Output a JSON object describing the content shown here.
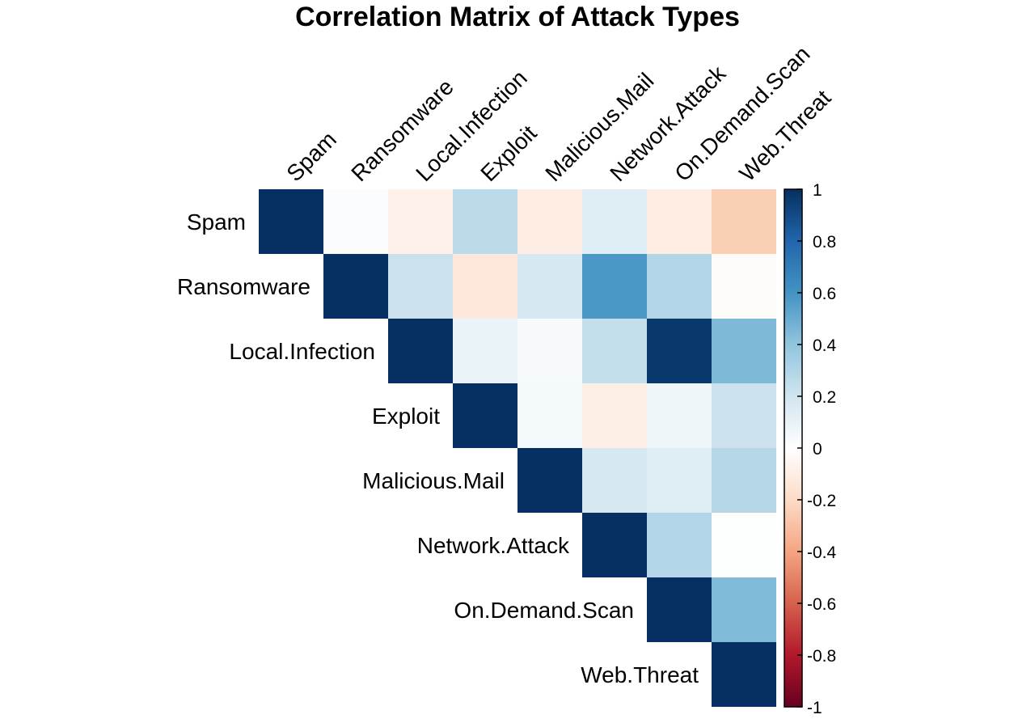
{
  "chart_data": {
    "type": "heatmap",
    "title": "Correlation Matrix of Attack Types",
    "variables": [
      "Spam",
      "Ransomware",
      "Local.Infection",
      "Exploit",
      "Malicious.Mail",
      "Network.Attack",
      "On.Demand.Scan",
      "Web.Threat"
    ],
    "layout": "upper-triangle",
    "matrix": [
      [
        1.0,
        0.02,
        -0.08,
        0.27,
        -0.1,
        0.14,
        -0.1,
        -0.25
      ],
      [
        0.02,
        1.0,
        0.22,
        -0.13,
        0.18,
        0.58,
        0.3,
        -0.02
      ],
      [
        -0.08,
        0.22,
        1.0,
        0.09,
        0.04,
        0.24,
        0.97,
        0.45
      ],
      [
        0.27,
        -0.13,
        0.09,
        1.0,
        0.05,
        -0.09,
        0.07,
        0.22
      ],
      [
        -0.1,
        0.18,
        0.04,
        0.05,
        1.0,
        0.18,
        0.14,
        0.29
      ],
      [
        0.14,
        0.58,
        0.24,
        -0.09,
        0.18,
        1.0,
        0.3,
        0.01
      ],
      [
        -0.1,
        0.3,
        0.97,
        0.07,
        0.14,
        0.3,
        1.0,
        0.44
      ],
      [
        -0.25,
        -0.02,
        0.45,
        0.22,
        0.29,
        0.01,
        0.44,
        1.0
      ]
    ],
    "colorbar": {
      "ticks": [
        "1",
        "0.8",
        "0.6",
        "0.4",
        "0.2",
        "0",
        "-0.2",
        "-0.4",
        "-0.6",
        "-0.8",
        "-1"
      ],
      "range": [
        -1,
        1
      ],
      "palette": [
        "#67001F",
        "#B2182B",
        "#D6604D",
        "#F4A582",
        "#FDDBC7",
        "#FFFFFF",
        "#D1E5F0",
        "#92C5DE",
        "#4393C3",
        "#2166AC",
        "#053061"
      ]
    }
  }
}
